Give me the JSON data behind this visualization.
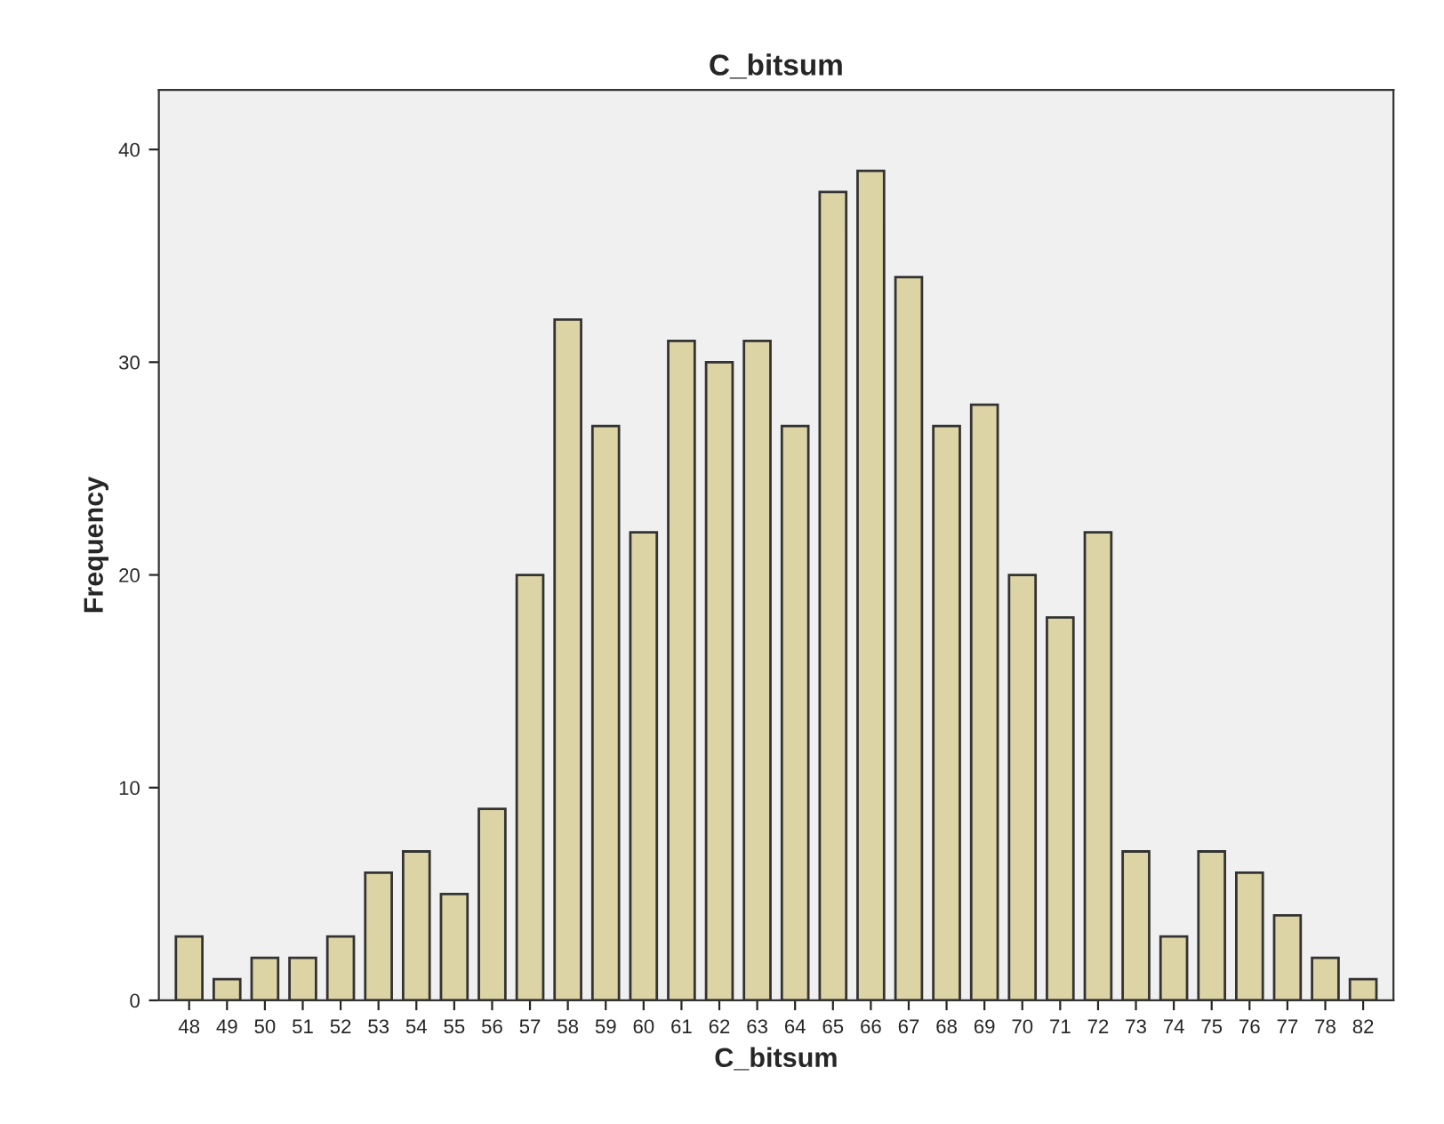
{
  "chart_data": {
    "type": "bar",
    "title": "C_bitsum",
    "xlabel": "C_bitsum",
    "ylabel": "Frequency",
    "categories": [
      "48",
      "49",
      "50",
      "51",
      "52",
      "53",
      "54",
      "55",
      "56",
      "57",
      "58",
      "59",
      "60",
      "61",
      "62",
      "63",
      "64",
      "65",
      "66",
      "67",
      "68",
      "69",
      "70",
      "71",
      "72",
      "73",
      "74",
      "75",
      "76",
      "77",
      "78",
      "82"
    ],
    "values": [
      3,
      1,
      2,
      2,
      3,
      6,
      7,
      5,
      9,
      20,
      32,
      27,
      22,
      31,
      30,
      31,
      27,
      38,
      39,
      34,
      27,
      28,
      20,
      18,
      22,
      7,
      3,
      7,
      6,
      4,
      2,
      1
    ],
    "color": "#dcd4a4",
    "ylim": [
      0,
      42.8
    ],
    "yticks": [
      0,
      10,
      20,
      30,
      40
    ],
    "grid": false,
    "legend": false
  }
}
